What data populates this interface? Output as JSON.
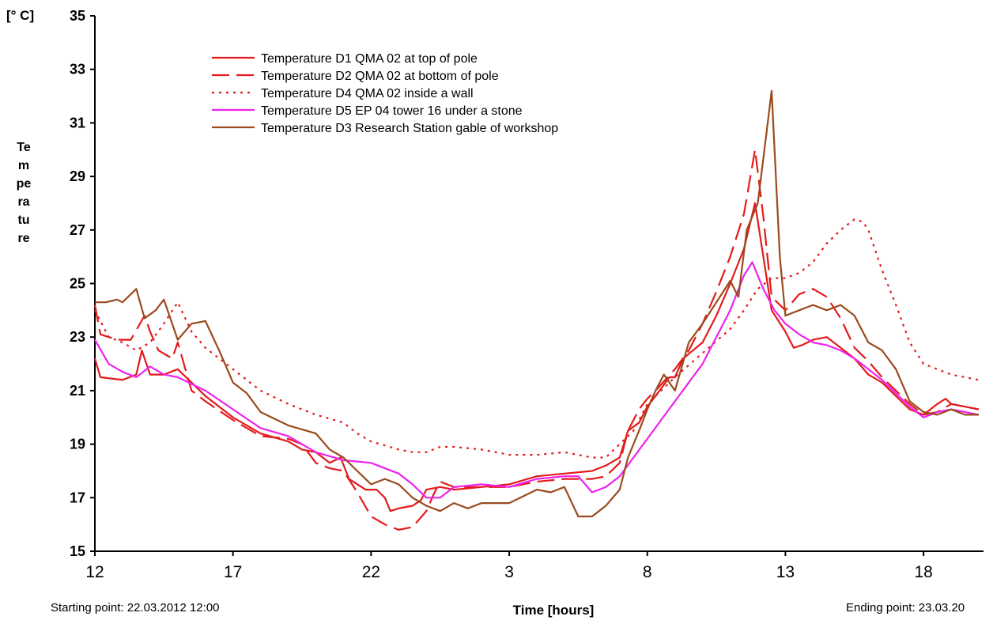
{
  "page": {
    "unit_label": "[° C]",
    "start_note": "Starting point: 22.03.2012  12:00",
    "end_note": "Ending point: 23.03.20"
  },
  "colors": {
    "axis": "#000000",
    "red": "#e31a1c",
    "magenta": "#ee22ee",
    "brown": "#9a4a1e"
  },
  "chart_data": {
    "type": "line",
    "title": "",
    "xlabel": "Time [hours]",
    "ylabel": "Temperature",
    "ylim": [
      15,
      35
    ],
    "xlim": [
      12,
      44
    ],
    "grid": false,
    "legend_position": "top-left",
    "yticks": [
      15,
      17,
      19,
      21,
      23,
      25,
      27,
      29,
      31,
      33,
      35
    ],
    "xticks": [
      {
        "x": 12,
        "label": "12"
      },
      {
        "x": 17,
        "label": "17"
      },
      {
        "x": 22,
        "label": "22"
      },
      {
        "x": 27,
        "label": "3"
      },
      {
        "x": 32,
        "label": "8"
      },
      {
        "x": 37,
        "label": "13"
      },
      {
        "x": 42,
        "label": "18"
      }
    ],
    "series": [
      {
        "name": "Temperature D1 QMA 02 at top of pole",
        "color": "#e31a1c",
        "dash": "solid",
        "points": [
          [
            12,
            22.2
          ],
          [
            12.2,
            21.5
          ],
          [
            13,
            21.4
          ],
          [
            13.5,
            21.6
          ],
          [
            13.7,
            22.5
          ],
          [
            14,
            21.6
          ],
          [
            14.5,
            21.6
          ],
          [
            15,
            21.8
          ],
          [
            15.5,
            21.3
          ],
          [
            16,
            20.8
          ],
          [
            17,
            20.0
          ],
          [
            18,
            19.4
          ],
          [
            19,
            19.1
          ],
          [
            19.5,
            18.8
          ],
          [
            20,
            18.7
          ],
          [
            20.5,
            18.3
          ],
          [
            20.9,
            18.5
          ],
          [
            21.2,
            17.7
          ],
          [
            21.8,
            17.3
          ],
          [
            22.2,
            17.3
          ],
          [
            22.5,
            17.0
          ],
          [
            22.7,
            16.5
          ],
          [
            23,
            16.6
          ],
          [
            23.5,
            16.7
          ],
          [
            23.8,
            16.9
          ],
          [
            24,
            17.3
          ],
          [
            24.5,
            17.4
          ],
          [
            25,
            17.3
          ],
          [
            26,
            17.4
          ],
          [
            27,
            17.5
          ],
          [
            28,
            17.8
          ],
          [
            29,
            17.9
          ],
          [
            30,
            18.0
          ],
          [
            30.5,
            18.2
          ],
          [
            31,
            18.5
          ],
          [
            31.3,
            19.5
          ],
          [
            31.7,
            19.8
          ],
          [
            32,
            20.4
          ],
          [
            32.3,
            20.8
          ],
          [
            32.8,
            21.5
          ],
          [
            33,
            21.5
          ],
          [
            33.3,
            22.2
          ],
          [
            34,
            22.8
          ],
          [
            34.5,
            23.8
          ],
          [
            35,
            25.0
          ],
          [
            35.5,
            26.3
          ],
          [
            35.9,
            28.0
          ],
          [
            36.2,
            26.0
          ],
          [
            36.5,
            24.0
          ],
          [
            37,
            23.2
          ],
          [
            37.3,
            22.6
          ],
          [
            37.6,
            22.7
          ],
          [
            38,
            22.9
          ],
          [
            38.5,
            23.0
          ],
          [
            39,
            22.6
          ],
          [
            39.5,
            22.2
          ],
          [
            40,
            21.6
          ],
          [
            40.5,
            21.3
          ],
          [
            41,
            20.8
          ],
          [
            41.5,
            20.3
          ],
          [
            42,
            20.1
          ],
          [
            42.5,
            20.5
          ],
          [
            42.8,
            20.7
          ],
          [
            43,
            20.5
          ],
          [
            43.5,
            20.4
          ],
          [
            44,
            20.3
          ]
        ]
      },
      {
        "name": "Temperature D2 QMA 02 at bottom of pole",
        "color": "#e31a1c",
        "dash": "long",
        "points": [
          [
            12,
            24.2
          ],
          [
            12.2,
            23.1
          ],
          [
            12.8,
            22.9
          ],
          [
            13.3,
            22.9
          ],
          [
            13.8,
            23.8
          ],
          [
            14,
            23.2
          ],
          [
            14.3,
            22.5
          ],
          [
            14.8,
            22.2
          ],
          [
            15,
            22.8
          ],
          [
            15.5,
            21.0
          ],
          [
            16,
            20.6
          ],
          [
            17,
            19.9
          ],
          [
            18,
            19.3
          ],
          [
            19,
            19.2
          ],
          [
            19.5,
            19.0
          ],
          [
            20,
            18.3
          ],
          [
            20.5,
            18.1
          ],
          [
            21,
            18.0
          ],
          [
            21.5,
            17.2
          ],
          [
            22,
            16.3
          ],
          [
            22.5,
            16.0
          ],
          [
            23,
            15.8
          ],
          [
            23.5,
            15.9
          ],
          [
            24,
            16.5
          ],
          [
            24.3,
            17.2
          ],
          [
            24.5,
            17.6
          ],
          [
            25,
            17.4
          ],
          [
            26,
            17.4
          ],
          [
            27,
            17.4
          ],
          [
            28,
            17.6
          ],
          [
            29,
            17.7
          ],
          [
            30,
            17.7
          ],
          [
            30.5,
            17.8
          ],
          [
            31,
            18.3
          ],
          [
            31.3,
            19.5
          ],
          [
            31.7,
            20.3
          ],
          [
            32,
            20.7
          ],
          [
            32.3,
            21.0
          ],
          [
            33,
            21.8
          ],
          [
            33.5,
            22.5
          ],
          [
            34,
            23.5
          ],
          [
            34.5,
            24.7
          ],
          [
            35,
            26.0
          ],
          [
            35.5,
            27.6
          ],
          [
            35.9,
            30.0
          ],
          [
            36.2,
            27.5
          ],
          [
            36.5,
            24.5
          ],
          [
            37,
            24.0
          ],
          [
            37.5,
            24.6
          ],
          [
            38,
            24.8
          ],
          [
            38.5,
            24.5
          ],
          [
            39,
            23.7
          ],
          [
            39.5,
            22.6
          ],
          [
            40,
            22.1
          ],
          [
            40.5,
            21.5
          ],
          [
            41,
            21.0
          ],
          [
            41.5,
            20.5
          ],
          [
            42,
            20.1
          ],
          [
            42.5,
            20.2
          ],
          [
            43,
            20.5
          ],
          [
            43.5,
            20.4
          ],
          [
            44,
            20.3
          ]
        ]
      },
      {
        "name": "Temperature  D4 QMA 02 inside a wall",
        "color": "#e31a1c",
        "dash": "dotted",
        "points": [
          [
            12,
            24.0
          ],
          [
            12.5,
            23.0
          ],
          [
            13,
            22.8
          ],
          [
            13.5,
            22.5
          ],
          [
            14,
            22.8
          ],
          [
            14.5,
            23.5
          ],
          [
            15,
            24.3
          ],
          [
            15.5,
            23.2
          ],
          [
            16,
            22.6
          ],
          [
            17,
            21.8
          ],
          [
            18,
            21.0
          ],
          [
            19,
            20.5
          ],
          [
            20,
            20.1
          ],
          [
            21,
            19.8
          ],
          [
            21.5,
            19.4
          ],
          [
            22,
            19.1
          ],
          [
            23,
            18.8
          ],
          [
            23.5,
            18.7
          ],
          [
            24,
            18.7
          ],
          [
            24.5,
            18.9
          ],
          [
            25,
            18.9
          ],
          [
            26,
            18.8
          ],
          [
            27,
            18.6
          ],
          [
            28,
            18.6
          ],
          [
            29,
            18.7
          ],
          [
            30,
            18.5
          ],
          [
            30.5,
            18.5
          ],
          [
            31,
            19.0
          ],
          [
            31.5,
            19.5
          ],
          [
            32,
            20.5
          ],
          [
            33,
            21.5
          ],
          [
            34,
            22.4
          ],
          [
            35,
            23.3
          ],
          [
            35.5,
            24.0
          ],
          [
            36,
            24.8
          ],
          [
            36.5,
            25.2
          ],
          [
            37,
            25.2
          ],
          [
            37.5,
            25.4
          ],
          [
            38,
            25.8
          ],
          [
            38.5,
            26.5
          ],
          [
            39,
            27.0
          ],
          [
            39.5,
            27.4
          ],
          [
            39.8,
            27.3
          ],
          [
            40,
            27.0
          ],
          [
            40.5,
            25.5
          ],
          [
            41,
            24.2
          ],
          [
            41.5,
            22.8
          ],
          [
            42,
            22.0
          ],
          [
            43,
            21.6
          ],
          [
            44,
            21.4
          ]
        ]
      },
      {
        "name": "Temperature D5 EP 04 tower 16  under a stone",
        "color": "#ee22ee",
        "dash": "solid",
        "points": [
          [
            12,
            22.9
          ],
          [
            12.5,
            22.0
          ],
          [
            13,
            21.7
          ],
          [
            13.5,
            21.5
          ],
          [
            14,
            21.9
          ],
          [
            14.5,
            21.6
          ],
          [
            15,
            21.5
          ],
          [
            16,
            21.0
          ],
          [
            17,
            20.3
          ],
          [
            18,
            19.6
          ],
          [
            19,
            19.3
          ],
          [
            20,
            18.7
          ],
          [
            21,
            18.4
          ],
          [
            22,
            18.3
          ],
          [
            23,
            17.9
          ],
          [
            23.5,
            17.5
          ],
          [
            24,
            17.0
          ],
          [
            24.5,
            17.0
          ],
          [
            25,
            17.4
          ],
          [
            26,
            17.5
          ],
          [
            27,
            17.4
          ],
          [
            28,
            17.7
          ],
          [
            29,
            17.8
          ],
          [
            29.5,
            17.8
          ],
          [
            30,
            17.2
          ],
          [
            30.5,
            17.4
          ],
          [
            31,
            17.8
          ],
          [
            31.5,
            18.5
          ],
          [
            32,
            19.2
          ],
          [
            32.5,
            19.9
          ],
          [
            33,
            20.6
          ],
          [
            33.5,
            21.3
          ],
          [
            34,
            22.0
          ],
          [
            34.5,
            23.0
          ],
          [
            35,
            24.0
          ],
          [
            35.5,
            25.3
          ],
          [
            35.8,
            25.8
          ],
          [
            36.2,
            24.8
          ],
          [
            36.6,
            24.0
          ],
          [
            37,
            23.5
          ],
          [
            37.5,
            23.1
          ],
          [
            38,
            22.8
          ],
          [
            38.5,
            22.7
          ],
          [
            39,
            22.5
          ],
          [
            39.5,
            22.2
          ],
          [
            40,
            21.8
          ],
          [
            40.5,
            21.4
          ],
          [
            41,
            20.9
          ],
          [
            41.5,
            20.4
          ],
          [
            42,
            20.0
          ],
          [
            42.5,
            20.2
          ],
          [
            43,
            20.3
          ],
          [
            43.5,
            20.2
          ],
          [
            44,
            20.1
          ]
        ]
      },
      {
        "name": "Temperature D3 Research Station gable of workshop",
        "color": "#9a4a1e",
        "dash": "solid",
        "points": [
          [
            12,
            24.3
          ],
          [
            12.4,
            24.3
          ],
          [
            12.8,
            24.4
          ],
          [
            13,
            24.3
          ],
          [
            13.5,
            24.8
          ],
          [
            13.8,
            23.7
          ],
          [
            14.2,
            24.0
          ],
          [
            14.5,
            24.4
          ],
          [
            15,
            22.9
          ],
          [
            15.5,
            23.5
          ],
          [
            16,
            23.6
          ],
          [
            16.5,
            22.5
          ],
          [
            17,
            21.3
          ],
          [
            17.5,
            20.9
          ],
          [
            18,
            20.2
          ],
          [
            19,
            19.7
          ],
          [
            20,
            19.4
          ],
          [
            20.5,
            18.8
          ],
          [
            21,
            18.5
          ],
          [
            21.5,
            18.0
          ],
          [
            22,
            17.5
          ],
          [
            22.5,
            17.7
          ],
          [
            23,
            17.5
          ],
          [
            23.5,
            17.0
          ],
          [
            24,
            16.7
          ],
          [
            24.5,
            16.5
          ],
          [
            25,
            16.8
          ],
          [
            25.5,
            16.6
          ],
          [
            26,
            16.8
          ],
          [
            27,
            16.8
          ],
          [
            28,
            17.3
          ],
          [
            28.5,
            17.2
          ],
          [
            29,
            17.4
          ],
          [
            29.5,
            16.3
          ],
          [
            30,
            16.3
          ],
          [
            30.5,
            16.7
          ],
          [
            31,
            17.3
          ],
          [
            31.3,
            18.5
          ],
          [
            31.7,
            19.5
          ],
          [
            32,
            20.3
          ],
          [
            32.3,
            21.0
          ],
          [
            32.6,
            21.6
          ],
          [
            33,
            21.0
          ],
          [
            33.5,
            22.8
          ],
          [
            34,
            23.5
          ],
          [
            34.5,
            24.3
          ],
          [
            35,
            25.1
          ],
          [
            35.3,
            24.5
          ],
          [
            35.6,
            27.0
          ],
          [
            36,
            28.0
          ],
          [
            36.3,
            30.5
          ],
          [
            36.5,
            32.2
          ],
          [
            36.8,
            26.0
          ],
          [
            37,
            23.8
          ],
          [
            37.5,
            24.0
          ],
          [
            38,
            24.2
          ],
          [
            38.5,
            24.0
          ],
          [
            39,
            24.2
          ],
          [
            39.5,
            23.8
          ],
          [
            40,
            22.8
          ],
          [
            40.5,
            22.5
          ],
          [
            41,
            21.8
          ],
          [
            41.5,
            20.6
          ],
          [
            42,
            20.2
          ],
          [
            42.5,
            20.1
          ],
          [
            43,
            20.3
          ],
          [
            43.5,
            20.1
          ],
          [
            44,
            20.1
          ]
        ]
      }
    ]
  }
}
